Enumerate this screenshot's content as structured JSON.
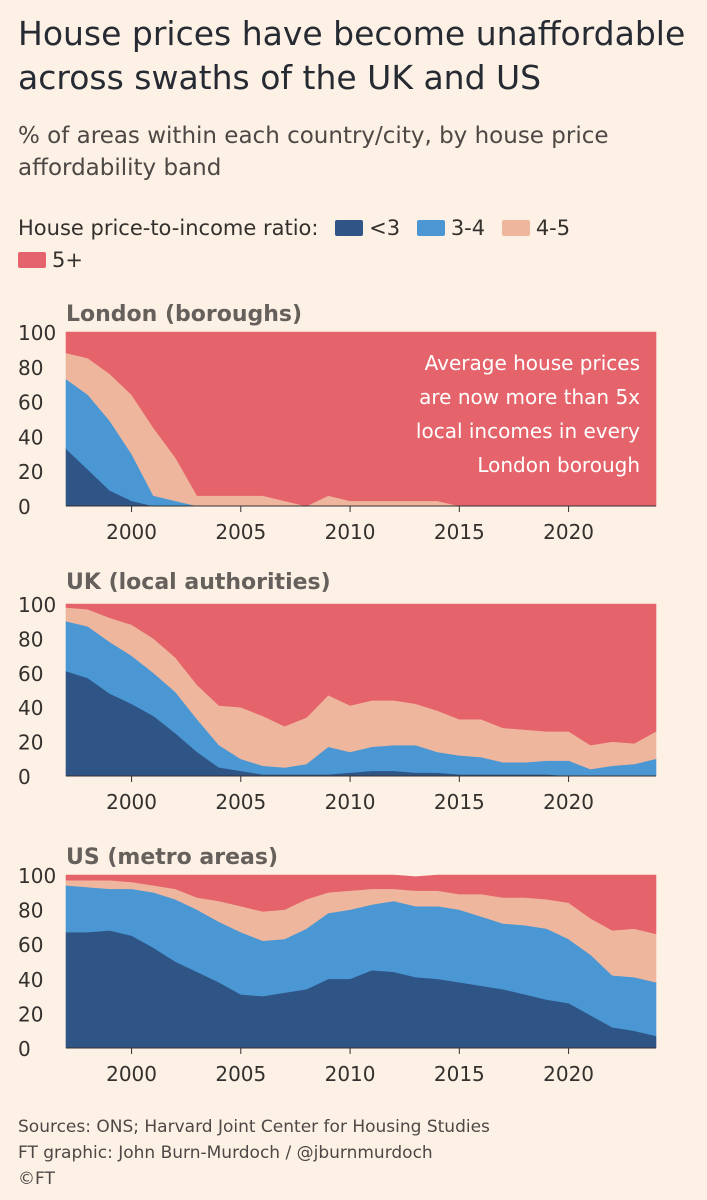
{
  "title": "House prices have become unaffordable across swaths of the UK and US",
  "subtitle": "% of areas within each country/city, by house price affordability band",
  "legend": {
    "label": "House price-to-income ratio:",
    "items": [
      {
        "label": "<3",
        "color": "#2f5586"
      },
      {
        "label": "3-4",
        "color": "#4a97d4"
      },
      {
        "label": "4-5",
        "color": "#eeb69c"
      },
      {
        "label": "5+",
        "color": "#e5646b"
      }
    ]
  },
  "chart_data": [
    {
      "type": "area",
      "stacked": true,
      "title": "London (boroughs)",
      "x": [
        1997,
        1998,
        1999,
        2000,
        2001,
        2002,
        2003,
        2004,
        2005,
        2006,
        2007,
        2008,
        2009,
        2010,
        2011,
        2012,
        2013,
        2014,
        2015,
        2016,
        2017,
        2018,
        2019,
        2020,
        2021,
        2022,
        2023,
        2024
      ],
      "ylim": [
        0,
        100
      ],
      "yticks": [
        0,
        20,
        40,
        60,
        80,
        100
      ],
      "xticks": [
        2000,
        2005,
        2010,
        2015,
        2020
      ],
      "series": [
        {
          "name": "<3",
          "values": [
            33,
            21,
            9,
            3,
            0,
            0,
            0,
            0,
            0,
            0,
            0,
            0,
            0,
            0,
            0,
            0,
            0,
            0,
            0,
            0,
            0,
            0,
            0,
            0,
            0,
            0,
            0,
            0
          ]
        },
        {
          "name": "3-4",
          "values": [
            40,
            43,
            40,
            27,
            6,
            3,
            0,
            0,
            0,
            0,
            0,
            0,
            0,
            0,
            0,
            0,
            0,
            0,
            0,
            0,
            0,
            0,
            0,
            0,
            0,
            0,
            0,
            0
          ]
        },
        {
          "name": "4-5",
          "values": [
            15,
            21,
            27,
            34,
            39,
            25,
            6,
            6,
            6,
            6,
            3,
            0,
            6,
            3,
            3,
            3,
            3,
            3,
            0,
            0,
            0,
            0,
            0,
            0,
            0,
            0,
            0,
            0
          ]
        },
        {
          "name": "5+",
          "values": [
            12,
            15,
            24,
            36,
            55,
            72,
            94,
            94,
            94,
            94,
            97,
            100,
            94,
            97,
            97,
            97,
            97,
            97,
            100,
            100,
            100,
            100,
            100,
            100,
            100,
            100,
            100,
            100
          ]
        }
      ],
      "annotation": "Average house prices are now more than 5x local incomes in every London borough"
    },
    {
      "type": "area",
      "stacked": true,
      "title": "UK (local authorities)",
      "x": [
        1997,
        1998,
        1999,
        2000,
        2001,
        2002,
        2003,
        2004,
        2005,
        2006,
        2007,
        2008,
        2009,
        2010,
        2011,
        2012,
        2013,
        2014,
        2015,
        2016,
        2017,
        2018,
        2019,
        2020,
        2021,
        2022,
        2023,
        2024
      ],
      "ylim": [
        0,
        100
      ],
      "yticks": [
        0,
        20,
        40,
        60,
        80,
        100
      ],
      "xticks": [
        2000,
        2005,
        2010,
        2015,
        2020
      ],
      "series": [
        {
          "name": "<3",
          "values": [
            61,
            57,
            48,
            42,
            35,
            25,
            14,
            5,
            3,
            1,
            1,
            1,
            1,
            2,
            3,
            3,
            2,
            2,
            1,
            1,
            1,
            1,
            1,
            0,
            0,
            0,
            0,
            0
          ]
        },
        {
          "name": "3-4",
          "values": [
            29,
            30,
            30,
            28,
            25,
            24,
            19,
            13,
            7,
            5,
            4,
            6,
            16,
            12,
            14,
            15,
            16,
            12,
            11,
            10,
            7,
            7,
            8,
            9,
            4,
            6,
            7,
            10
          ]
        },
        {
          "name": "4-5",
          "values": [
            8,
            10,
            14,
            18,
            20,
            20,
            20,
            23,
            30,
            29,
            24,
            27,
            30,
            27,
            27,
            26,
            24,
            24,
            21,
            22,
            20,
            19,
            17,
            17,
            14,
            14,
            12,
            16
          ]
        },
        {
          "name": "5+",
          "values": [
            2,
            3,
            8,
            12,
            20,
            31,
            47,
            59,
            60,
            65,
            71,
            66,
            53,
            59,
            56,
            56,
            58,
            62,
            67,
            67,
            72,
            73,
            74,
            74,
            82,
            80,
            81,
            74
          ]
        }
      ]
    },
    {
      "type": "area",
      "stacked": true,
      "title": "US (metro areas)",
      "x": [
        1997,
        1998,
        1999,
        2000,
        2001,
        2002,
        2003,
        2004,
        2005,
        2006,
        2007,
        2008,
        2009,
        2010,
        2011,
        2012,
        2013,
        2014,
        2015,
        2016,
        2017,
        2018,
        2019,
        2020,
        2021,
        2022,
        2023,
        2024
      ],
      "ylim": [
        0,
        100
      ],
      "yticks": [
        0,
        20,
        40,
        60,
        80,
        100
      ],
      "xticks": [
        2000,
        2005,
        2010,
        2015,
        2020
      ],
      "series": [
        {
          "name": "<3",
          "values": [
            67,
            67,
            68,
            65,
            58,
            50,
            44,
            38,
            31,
            30,
            32,
            34,
            40,
            40,
            45,
            44,
            41,
            40,
            38,
            36,
            34,
            31,
            28,
            26,
            19,
            12,
            10,
            7
          ]
        },
        {
          "name": "3-4",
          "values": [
            27,
            26,
            24,
            27,
            32,
            36,
            36,
            35,
            36,
            32,
            31,
            35,
            38,
            40,
            38,
            41,
            41,
            42,
            42,
            40,
            38,
            40,
            41,
            37,
            35,
            30,
            31,
            31
          ]
        },
        {
          "name": "4-5",
          "values": [
            3,
            4,
            5,
            4,
            4,
            6,
            7,
            12,
            15,
            17,
            17,
            17,
            12,
            11,
            9,
            7,
            9,
            9,
            9,
            13,
            15,
            16,
            17,
            21,
            21,
            26,
            28,
            28
          ]
        },
        {
          "name": "5+",
          "values": [
            3,
            3,
            3,
            4,
            6,
            8,
            13,
            15,
            18,
            21,
            20,
            14,
            10,
            9,
            8,
            8,
            8,
            9,
            11,
            11,
            13,
            13,
            14,
            16,
            25,
            32,
            31,
            34
          ]
        }
      ]
    }
  ],
  "footer": {
    "sources": "Sources: ONS; Harvard Joint Center for Housing Studies",
    "credit": "FT graphic: John Burn-Murdoch / @jburnmurdoch",
    "copyright": "©FT"
  }
}
